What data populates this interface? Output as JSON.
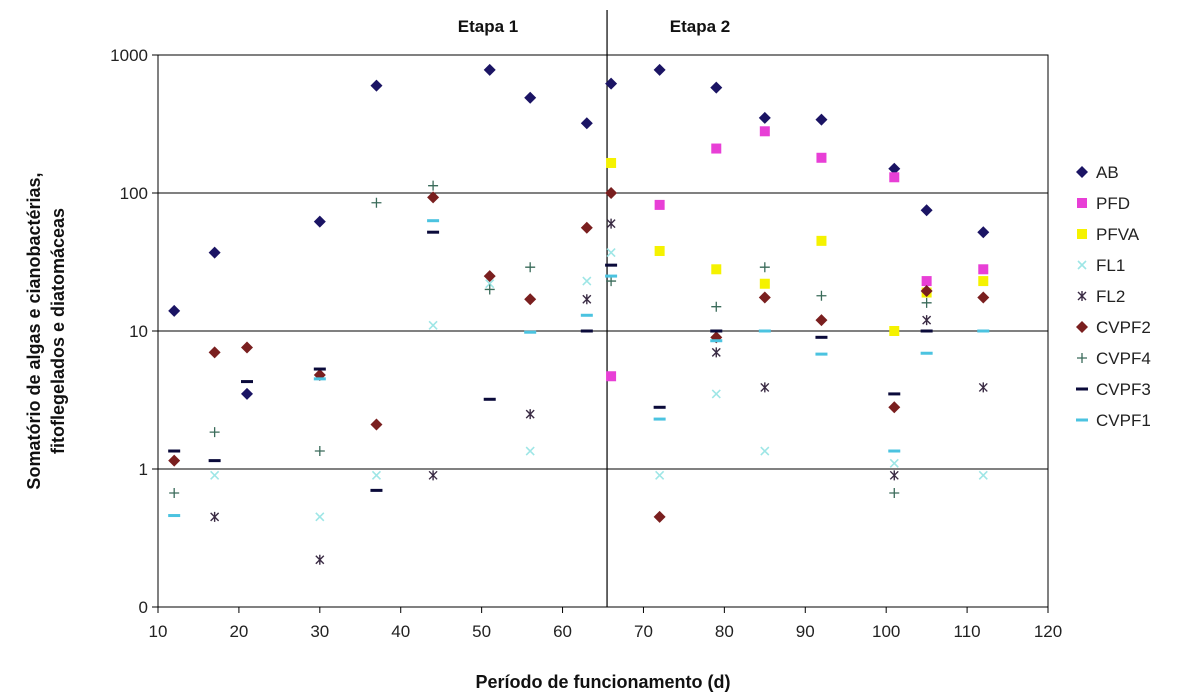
{
  "chart_data": {
    "type": "scatter",
    "xlabel": "Período de funcionamento (d)",
    "ylabel_lines": [
      "Somatório de algas e cianobactérias,",
      "fitoflegelados e diatomáceas"
    ],
    "xlim": [
      10,
      120
    ],
    "x_ticks": [
      "10",
      "20",
      "30",
      "40",
      "50",
      "60",
      "70",
      "80",
      "90",
      "100",
      "110",
      "120"
    ],
    "y_scale": "log",
    "ylim": [
      0.1,
      1000
    ],
    "y_ticks": [
      {
        "value": 0.1,
        "label": "0"
      },
      {
        "value": 1,
        "label": "1"
      },
      {
        "value": 10,
        "label": "10"
      },
      {
        "value": 100,
        "label": "100"
      },
      {
        "value": 1000,
        "label": "1000"
      }
    ],
    "grid": "horizontal major",
    "stage_divider_x": 65.5,
    "stage_labels": [
      "Etapa 1",
      "Etapa 2"
    ],
    "legend_position": "right",
    "series": [
      {
        "name": "AB",
        "color": "#1b1464",
        "marker": "diamond",
        "points": [
          [
            12,
            14
          ],
          [
            17,
            37
          ],
          [
            21,
            3.5
          ],
          [
            30,
            62
          ],
          [
            37,
            600
          ],
          [
            51,
            780
          ],
          [
            56,
            490
          ],
          [
            63,
            320
          ],
          [
            66,
            620
          ],
          [
            72,
            780
          ],
          [
            79,
            580
          ],
          [
            85,
            350
          ],
          [
            92,
            340
          ],
          [
            101,
            150
          ],
          [
            105,
            75
          ],
          [
            112,
            52
          ]
        ]
      },
      {
        "name": "PFD",
        "color": "#e83fd6",
        "marker": "square",
        "points": [
          [
            66,
            4.7
          ],
          [
            72,
            82
          ],
          [
            79,
            210
          ],
          [
            85,
            280
          ],
          [
            92,
            180
          ],
          [
            101,
            130
          ],
          [
            105,
            23
          ],
          [
            112,
            28
          ]
        ]
      },
      {
        "name": "PFVA",
        "color": "#f5f200",
        "marker": "square",
        "points": [
          [
            66,
            165
          ],
          [
            72,
            38
          ],
          [
            79,
            28
          ],
          [
            85,
            22
          ],
          [
            92,
            45
          ],
          [
            101,
            10
          ],
          [
            105,
            19
          ],
          [
            112,
            23
          ]
        ]
      },
      {
        "name": "FL1",
        "color": "#9ee6e6",
        "marker": "x",
        "points": [
          [
            17,
            0.9
          ],
          [
            30,
            0.45
          ],
          [
            37,
            0.9
          ],
          [
            44,
            11
          ],
          [
            51,
            22
          ],
          [
            56,
            1.35
          ],
          [
            63,
            23
          ],
          [
            66,
            37
          ],
          [
            72,
            0.9
          ],
          [
            79,
            3.5
          ],
          [
            85,
            1.35
          ],
          [
            101,
            1.1
          ],
          [
            112,
            0.9
          ]
        ]
      },
      {
        "name": "FL2",
        "color": "#3a2b44",
        "marker": "star",
        "points": [
          [
            17,
            0.45
          ],
          [
            30,
            0.22
          ],
          [
            44,
            0.9
          ],
          [
            56,
            2.5
          ],
          [
            63,
            17
          ],
          [
            66,
            60
          ],
          [
            79,
            7
          ],
          [
            85,
            3.9
          ],
          [
            101,
            0.9
          ],
          [
            105,
            12
          ],
          [
            112,
            3.9
          ]
        ]
      },
      {
        "name": "CVPF2",
        "color": "#7a1f1f",
        "marker": "diamond",
        "points": [
          [
            12,
            1.15
          ],
          [
            17,
            7
          ],
          [
            21,
            7.6
          ],
          [
            30,
            4.8
          ],
          [
            37,
            2.1
          ],
          [
            44,
            93
          ],
          [
            51,
            25
          ],
          [
            56,
            17
          ],
          [
            63,
            56
          ],
          [
            66,
            100
          ],
          [
            72,
            0.45
          ],
          [
            79,
            9
          ],
          [
            85,
            17.5
          ],
          [
            92,
            12
          ],
          [
            101,
            2.8
          ],
          [
            105,
            19.5
          ],
          [
            112,
            17.5
          ]
        ]
      },
      {
        "name": "CVPF4",
        "color": "#3a6b5a",
        "marker": "plus",
        "points": [
          [
            12,
            0.67
          ],
          [
            17,
            1.85
          ],
          [
            30,
            1.35
          ],
          [
            37,
            85
          ],
          [
            44,
            113
          ],
          [
            51,
            20
          ],
          [
            56,
            29
          ],
          [
            66,
            23
          ],
          [
            79,
            15
          ],
          [
            85,
            29
          ],
          [
            92,
            18
          ],
          [
            101,
            0.67
          ],
          [
            105,
            16
          ]
        ]
      },
      {
        "name": "CVPF3",
        "color": "#0a0a3a",
        "marker": "dash",
        "points": [
          [
            12,
            1.35
          ],
          [
            17,
            1.15
          ],
          [
            21,
            4.3
          ],
          [
            30,
            5.3
          ],
          [
            37,
            0.7
          ],
          [
            44,
            52
          ],
          [
            51,
            3.2
          ],
          [
            63,
            10
          ],
          [
            66,
            30
          ],
          [
            72,
            2.8
          ],
          [
            79,
            10
          ],
          [
            92,
            9
          ],
          [
            101,
            3.5
          ],
          [
            105,
            10
          ]
        ]
      },
      {
        "name": "CVPF1",
        "color": "#4bc3e0",
        "marker": "dash",
        "points": [
          [
            12,
            0.46
          ],
          [
            30,
            4.5
          ],
          [
            44,
            63
          ],
          [
            56,
            9.8
          ],
          [
            63,
            13
          ],
          [
            66,
            25
          ],
          [
            72,
            2.3
          ],
          [
            79,
            8.5
          ],
          [
            85,
            10
          ],
          [
            92,
            6.8
          ],
          [
            101,
            1.35
          ],
          [
            105,
            6.9
          ],
          [
            112,
            10
          ]
        ]
      }
    ]
  }
}
